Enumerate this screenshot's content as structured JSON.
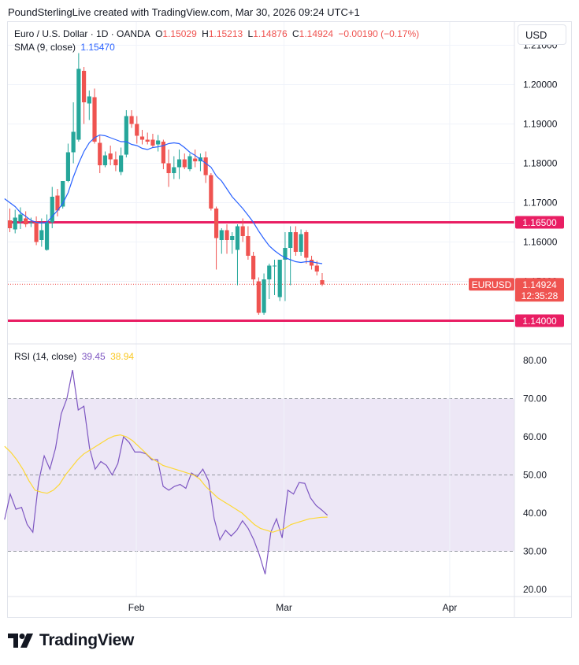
{
  "header": {
    "attribution": "PoundSterlingLive created with TradingView.com, Mar 30, 2026 09:24 UTC+1"
  },
  "currency_button": "USD",
  "legend": {
    "symbol": "Euro / U.S. Dollar · 1D · OANDA",
    "o_label": "O",
    "o_value": "1.15029",
    "h_label": "H",
    "h_value": "1.15213",
    "l_label": "L",
    "l_value": "1.14876",
    "c_label": "C",
    "c_value": "1.14924",
    "change": "−0.00190 (−0.17%)",
    "sma_label": "SMA (9, close)",
    "sma_value": "1.15470",
    "rsi_label": "RSI (14, close)",
    "rsi_value": "39.45",
    "rsi_ma_value": "38.94"
  },
  "brand": "TradingView",
  "colors": {
    "up": "#26a69a",
    "down": "#ef5350",
    "sma": "#2962ff",
    "hline": "#e91e63",
    "rsi": "#7e57c2",
    "rsi_ma": "#fdd835",
    "rsi_band": "#ede7f6"
  },
  "chart_data": [
    {
      "type": "candlestick",
      "symbol": "EURUSD",
      "title": "Euro / U.S. Dollar · 1D · OANDA",
      "ylim": [
        1.137,
        1.2125
      ],
      "y_ticks": [
        "1.21000",
        "1.20000",
        "1.19000",
        "1.18000",
        "1.17000",
        "1.16000",
        "1.15000"
      ],
      "x_ticks": [
        {
          "label": "Feb",
          "index": 23.9
        },
        {
          "label": "Mar",
          "index": 51.8
        },
        {
          "label": "Apr",
          "index": 83.1
        }
      ],
      "horizontal_lines": [
        {
          "value": 1.165,
          "label": "1.16500"
        },
        {
          "value": 1.14,
          "label": "1.14000"
        }
      ],
      "last_price": {
        "value": 1.14924,
        "label": "1.14924",
        "symbol_label": "EURUSD",
        "countdown": "12:35:28"
      },
      "candles": [
        {
          "x": 0,
          "o": 1.1655,
          "h": 1.1685,
          "l": 1.1625,
          "c": 1.1635
        },
        {
          "x": 1,
          "o": 1.1632,
          "h": 1.1682,
          "l": 1.1622,
          "c": 1.1662
        },
        {
          "x": 2,
          "o": 1.1652,
          "h": 1.1688,
          "l": 1.1633,
          "c": 1.167
        },
        {
          "x": 3,
          "o": 1.166,
          "h": 1.1678,
          "l": 1.1638,
          "c": 1.1645
        },
        {
          "x": 4,
          "o": 1.1648,
          "h": 1.1662,
          "l": 1.1638,
          "c": 1.165
        },
        {
          "x": 5,
          "o": 1.1652,
          "h": 1.1665,
          "l": 1.1592,
          "c": 1.16
        },
        {
          "x": 6,
          "o": 1.1605,
          "h": 1.166,
          "l": 1.1588,
          "c": 1.163
        },
        {
          "x": 7,
          "o": 1.158,
          "h": 1.167,
          "l": 1.1578,
          "c": 1.165
        },
        {
          "x": 8,
          "o": 1.165,
          "h": 1.174,
          "l": 1.1635,
          "c": 1.1715
        },
        {
          "x": 9,
          "o": 1.1718,
          "h": 1.1735,
          "l": 1.1665,
          "c": 1.168
        },
        {
          "x": 10,
          "o": 1.169,
          "h": 1.1755,
          "l": 1.1685,
          "c": 1.1755
        },
        {
          "x": 11,
          "o": 1.1755,
          "h": 1.185,
          "l": 1.1752,
          "c": 1.1828
        },
        {
          "x": 12,
          "o": 1.1828,
          "h": 1.1955,
          "l": 1.18,
          "c": 1.188
        },
        {
          "x": 13,
          "o": 1.186,
          "h": 1.208,
          "l": 1.1855,
          "c": 1.204
        },
        {
          "x": 14,
          "o": 1.2035,
          "h": 1.2045,
          "l": 1.19,
          "c": 1.1955
        },
        {
          "x": 15,
          "o": 1.1952,
          "h": 1.1985,
          "l": 1.191,
          "c": 1.197
        },
        {
          "x": 16,
          "o": 1.1968,
          "h": 1.199,
          "l": 1.185,
          "c": 1.1855
        },
        {
          "x": 17,
          "o": 1.1852,
          "h": 1.187,
          "l": 1.1775,
          "c": 1.1795
        },
        {
          "x": 18,
          "o": 1.1795,
          "h": 1.183,
          "l": 1.179,
          "c": 1.182
        },
        {
          "x": 19,
          "o": 1.1825,
          "h": 1.1845,
          "l": 1.1795,
          "c": 1.181
        },
        {
          "x": 20,
          "o": 1.181,
          "h": 1.183,
          "l": 1.178,
          "c": 1.1795
        },
        {
          "x": 21,
          "o": 1.1778,
          "h": 1.184,
          "l": 1.177,
          "c": 1.182
        },
        {
          "x": 22,
          "o": 1.1822,
          "h": 1.1935,
          "l": 1.1815,
          "c": 1.192
        },
        {
          "x": 23,
          "o": 1.192,
          "h": 1.1935,
          "l": 1.189,
          "c": 1.19
        },
        {
          "x": 24,
          "o": 1.19,
          "h": 1.192,
          "l": 1.185,
          "c": 1.187
        },
        {
          "x": 25,
          "o": 1.1868,
          "h": 1.1885,
          "l": 1.1848,
          "c": 1.186
        },
        {
          "x": 26,
          "o": 1.186,
          "h": 1.1878,
          "l": 1.1848,
          "c": 1.1855
        },
        {
          "x": 27,
          "o": 1.186,
          "h": 1.1875,
          "l": 1.184,
          "c": 1.1845
        },
        {
          "x": 28,
          "o": 1.1848,
          "h": 1.1872,
          "l": 1.183,
          "c": 1.1858
        },
        {
          "x": 29,
          "o": 1.1855,
          "h": 1.186,
          "l": 1.1785,
          "c": 1.18
        },
        {
          "x": 30,
          "o": 1.18,
          "h": 1.1835,
          "l": 1.174,
          "c": 1.1775
        },
        {
          "x": 31,
          "o": 1.1775,
          "h": 1.1818,
          "l": 1.176,
          "c": 1.179
        },
        {
          "x": 32,
          "o": 1.179,
          "h": 1.1835,
          "l": 1.176,
          "c": 1.181
        },
        {
          "x": 33,
          "o": 1.181,
          "h": 1.1825,
          "l": 1.1785,
          "c": 1.179
        },
        {
          "x": 34,
          "o": 1.1785,
          "h": 1.1825,
          "l": 1.178,
          "c": 1.1818
        },
        {
          "x": 35,
          "o": 1.1812,
          "h": 1.1835,
          "l": 1.179,
          "c": 1.1805
        },
        {
          "x": 36,
          "o": 1.1805,
          "h": 1.1825,
          "l": 1.178,
          "c": 1.1815
        },
        {
          "x": 37,
          "o": 1.1815,
          "h": 1.183,
          "l": 1.175,
          "c": 1.177
        },
        {
          "x": 38,
          "o": 1.177,
          "h": 1.1775,
          "l": 1.168,
          "c": 1.1685
        },
        {
          "x": 39,
          "o": 1.1685,
          "h": 1.169,
          "l": 1.153,
          "c": 1.161
        },
        {
          "x": 40,
          "o": 1.1605,
          "h": 1.1635,
          "l": 1.157,
          "c": 1.163
        },
        {
          "x": 41,
          "o": 1.163,
          "h": 1.1645,
          "l": 1.157,
          "c": 1.1605
        },
        {
          "x": 42,
          "o": 1.1605,
          "h": 1.1625,
          "l": 1.157,
          "c": 1.1615
        },
        {
          "x": 43,
          "o": 1.158,
          "h": 1.1645,
          "l": 1.149,
          "c": 1.164
        },
        {
          "x": 44,
          "o": 1.164,
          "h": 1.166,
          "l": 1.16,
          "c": 1.1615
        },
        {
          "x": 45,
          "o": 1.1615,
          "h": 1.164,
          "l": 1.1555,
          "c": 1.1565
        },
        {
          "x": 46,
          "o": 1.1565,
          "h": 1.1575,
          "l": 1.149,
          "c": 1.1505
        },
        {
          "x": 47,
          "o": 1.15,
          "h": 1.151,
          "l": 1.1415,
          "c": 1.142
        },
        {
          "x": 48,
          "o": 1.142,
          "h": 1.152,
          "l": 1.1415,
          "c": 1.1505
        },
        {
          "x": 49,
          "o": 1.1505,
          "h": 1.1545,
          "l": 1.1455,
          "c": 1.154
        },
        {
          "x": 50,
          "o": 1.154,
          "h": 1.1555,
          "l": 1.1465,
          "c": 1.154
        },
        {
          "x": 51,
          "o": 1.146,
          "h": 1.1555,
          "l": 1.145,
          "c": 1.1555
        },
        {
          "x": 52,
          "o": 1.1555,
          "h": 1.1625,
          "l": 1.145,
          "c": 1.1585
        },
        {
          "x": 53,
          "o": 1.1585,
          "h": 1.164,
          "l": 1.149,
          "c": 1.1625
        },
        {
          "x": 54,
          "o": 1.1625,
          "h": 1.164,
          "l": 1.1565,
          "c": 1.1575
        },
        {
          "x": 55,
          "o": 1.1575,
          "h": 1.1632,
          "l": 1.1565,
          "c": 1.162
        },
        {
          "x": 56,
          "o": 1.1625,
          "h": 1.163,
          "l": 1.1545,
          "c": 1.156
        },
        {
          "x": 57,
          "o": 1.1555,
          "h": 1.1565,
          "l": 1.153,
          "c": 1.154
        },
        {
          "x": 58,
          "o": 1.154,
          "h": 1.1552,
          "l": 1.1515,
          "c": 1.1525
        },
        {
          "x": 59,
          "o": 1.1503,
          "h": 1.1521,
          "l": 1.1488,
          "c": 1.1492
        }
      ],
      "sma": {
        "name": "SMA (9, close)",
        "x0": -1,
        "values": [
          1.171,
          1.17,
          1.169,
          1.1675,
          1.1665,
          1.1655,
          1.165,
          1.1648,
          1.165,
          1.1665,
          1.168,
          1.1698,
          1.1725,
          1.1765,
          1.18,
          1.183,
          1.1852,
          1.1865,
          1.1872,
          1.187,
          1.1865,
          1.186,
          1.1855,
          1.1855,
          1.1848,
          1.1845,
          1.1838,
          1.1835,
          1.184,
          1.1842,
          1.1845,
          1.185,
          1.1852,
          1.185,
          1.184,
          1.1828,
          1.182,
          1.181,
          1.18,
          1.179,
          1.1768,
          1.1755,
          1.1735,
          1.1715,
          1.17,
          1.1685,
          1.1668,
          1.165,
          1.1628,
          1.1608,
          1.159,
          1.1578,
          1.1568,
          1.156,
          1.1555,
          1.155,
          1.1548,
          1.155,
          1.155,
          1.1547,
          1.1545
        ]
      }
    },
    {
      "type": "line",
      "title": "RSI (14, close)",
      "ylim": [
        17.5,
        81.5
      ],
      "y_ticks": [
        "80.00",
        "70.00",
        "60.00",
        "50.00",
        "40.00",
        "30.00",
        "20.00"
      ],
      "band": [
        30,
        70
      ],
      "midline": 50,
      "series": [
        {
          "name": "RSI",
          "x0": -1,
          "values": [
            38.3,
            45.0,
            41.0,
            41.5,
            37.0,
            35.0,
            48.0,
            55.0,
            51.5,
            57.0,
            66.0,
            70.0,
            77.5,
            67.0,
            68.0,
            57.0,
            51.5,
            53.5,
            52.5,
            50.0,
            53.0,
            60.0,
            58.5,
            56.0,
            56.0,
            55.5,
            54.0,
            54.0,
            47.0,
            46.0,
            47.0,
            47.5,
            46.5,
            50.5,
            49.5,
            51.5,
            48.5,
            38.5,
            33.0,
            35.5,
            34.0,
            35.5,
            38.0,
            36.0,
            33.0,
            29.0,
            24.0,
            35.0,
            38.5,
            33.5,
            46.0,
            45.0,
            48.0,
            47.8,
            44.0,
            42.0,
            40.8,
            39.45
          ]
        },
        {
          "name": "RSI MA",
          "x0": -1,
          "values": [
            57.5,
            56.0,
            54.0,
            51.5,
            48.5,
            46.0,
            45.5,
            45.2,
            46.0,
            47.5,
            50.0,
            52.0,
            54.0,
            55.5,
            56.5,
            57.5,
            58.5,
            59.5,
            60.2,
            60.5,
            60.0,
            59.0,
            57.5,
            56.0,
            54.5,
            53.5,
            52.5,
            52.0,
            51.5,
            51.0,
            50.5,
            50.0,
            49.0,
            47.0,
            45.5,
            44.0,
            43.0,
            42.0,
            41.0,
            40.0,
            38.5,
            37.0,
            36.0,
            35.5,
            35.0,
            35.5,
            36.0,
            37.0,
            37.5,
            38.0,
            38.5,
            38.7,
            38.9,
            38.94
          ]
        }
      ]
    }
  ]
}
